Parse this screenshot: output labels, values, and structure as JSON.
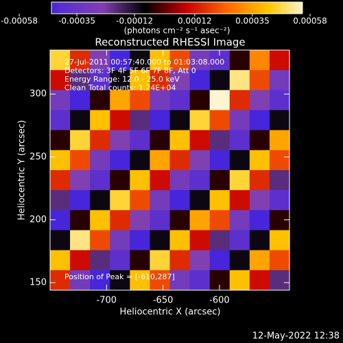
{
  "chart_data": {
    "type": "heatmap",
    "title": "Reconstructed RHESSI Image",
    "xlabel": "Heliocentric X (arcsec)",
    "ylabel": "Heliocentric Y (arcsec)",
    "colorbar_label": "(photons cm⁻² s⁻¹ asec⁻²)",
    "clim": [
      -0.00058,
      0.00058
    ],
    "colorbar_ticks": [
      -0.00058,
      -0.00035,
      -0.00012,
      0.00012,
      0.00035,
      0.00058
    ],
    "colormap": [
      "#0000ff",
      "#5a2fd0",
      "#8040b0",
      "#000000",
      "#c80000",
      "#ff6a00",
      "#ffc800",
      "#ffffff"
    ],
    "xlim": [
      -750,
      -538
    ],
    "xticks": [
      -700,
      -650,
      -600
    ],
    "ylim": [
      144,
      335
    ],
    "yticks": [
      150,
      200,
      250,
      300
    ],
    "annotations": [
      "27-Jul-2011 00:57:40.000 to 01:03:08.000",
      "Detectors: 3F 4F 5F 6F 7F 8F, Att 0",
      "Energy Range: 12.0 - 25.0 keV",
      "Clean     Total counts: 1.24E+04"
    ],
    "peak_label": "Position of Peak = [-610,287]",
    "timestamp": "12-May-2022 12:38",
    "z": [
      [
        0.00045,
        0.00015,
        -0.00025,
        -0.00045,
        -0.0001,
        0.0004,
        0.0002,
        -0.0003,
        -0.0004,
        -5e-05,
        0.0003,
        0.0001
      ],
      [
        0.0001,
        -0.0002,
        -0.0004,
        -0.0001,
        0.0004,
        0.00015,
        -0.00025,
        -0.00045,
        -0.0001,
        0.0005,
        0.0002,
        -0.0003
      ],
      [
        -0.0003,
        -0.00045,
        -5e-05,
        0.00035,
        0.0002,
        -0.0003,
        -0.0004,
        -5e-05,
        0.00055,
        0.00015,
        -0.00025,
        -0.0004
      ],
      [
        -0.0004,
        -0.0001,
        0.0004,
        0.0001,
        -0.0002,
        -0.00045,
        -0.0001,
        0.00045,
        0.0002,
        -0.0003,
        -0.00045,
        -0.0001
      ],
      [
        -5e-05,
        0.00045,
        0.00015,
        -0.00025,
        -0.0004,
        -5e-05,
        0.0004,
        0.0001,
        -0.0002,
        -0.0004,
        -5e-05,
        0.00035
      ],
      [
        0.0004,
        0.0002,
        -0.0003,
        -0.00045,
        -0.0001,
        0.00035,
        0.00015,
        -0.00025,
        -0.00045,
        -0.0001,
        0.0004,
        0.0002
      ],
      [
        0.00015,
        -0.00025,
        -0.0004,
        -5e-05,
        0.0004,
        0.0001,
        -0.0003,
        -0.0004,
        -5e-05,
        0.00045,
        0.00015,
        -0.0002
      ],
      [
        -0.0002,
        -0.00045,
        -0.0001,
        0.00045,
        0.0002,
        -0.0003,
        -0.00045,
        -0.0001,
        0.0004,
        0.0001,
        -0.00025,
        -0.0004
      ],
      [
        -0.00045,
        -5e-05,
        0.0004,
        0.00015,
        -0.00025,
        -0.0004,
        -5e-05,
        0.00035,
        0.0002,
        -0.0003,
        -0.00045,
        -5e-05
      ],
      [
        -0.0001,
        0.0005,
        0.0002,
        -0.0003,
        -0.00045,
        -0.0001,
        0.0004,
        0.0001,
        -0.0002,
        -0.0004,
        -0.0001,
        0.0004
      ],
      [
        0.0004,
        0.0001,
        -0.0002,
        -0.0004,
        -5e-05,
        0.00045,
        0.00015,
        -0.00025,
        -0.00045,
        -0.0001,
        0.00035,
        0.0002
      ],
      [
        0.00015,
        -0.0003,
        -0.00045,
        -0.0001,
        0.0004,
        0.0002,
        -0.0003,
        -0.0004,
        -5e-05,
        0.0004,
        0.0001,
        -0.0002
      ]
    ]
  }
}
